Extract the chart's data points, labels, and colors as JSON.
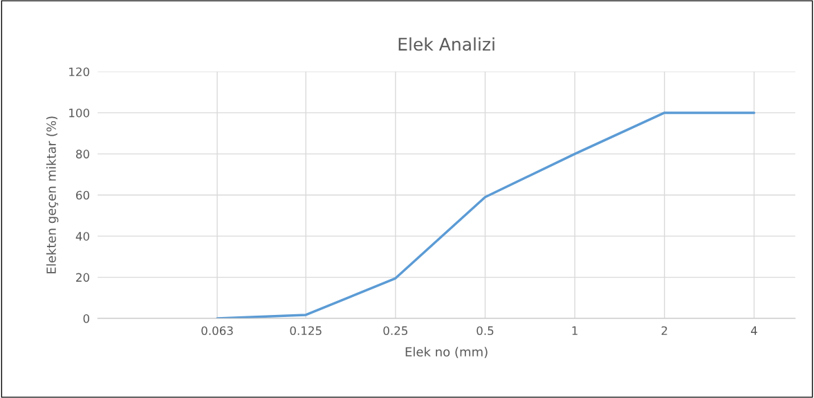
{
  "chart_data": {
    "type": "line",
    "title": "Elek Analizi",
    "xlabel": "Elek no (mm)",
    "ylabel": "Elekten geçen miktar (%)",
    "x": [
      0.063,
      0.125,
      0.25,
      0.5,
      1,
      2,
      4
    ],
    "series": [
      {
        "color": "#5b9bd5",
        "values": [
          0,
          1.7,
          19.5,
          59,
          80,
          100,
          100
        ]
      }
    ],
    "log": "x",
    "xlim": [
      0.025,
      5.5
    ],
    "xticks": [
      0.063,
      0.125,
      0.25,
      0.5,
      1,
      2,
      4
    ],
    "ylim": [
      0,
      120
    ],
    "yticks": [
      0,
      20,
      40,
      60,
      80,
      100,
      120
    ],
    "grid": true,
    "marker": "none",
    "line_style": "solid"
  }
}
